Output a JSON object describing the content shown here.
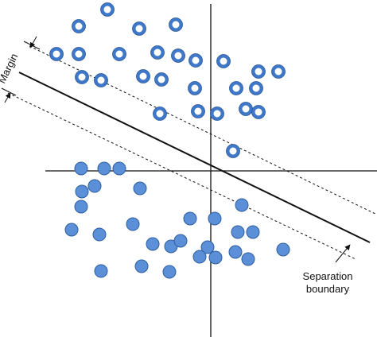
{
  "labels": {
    "margin": "Margin",
    "separation_boundary": [
      "Separation",
      "boundary"
    ]
  }
}
